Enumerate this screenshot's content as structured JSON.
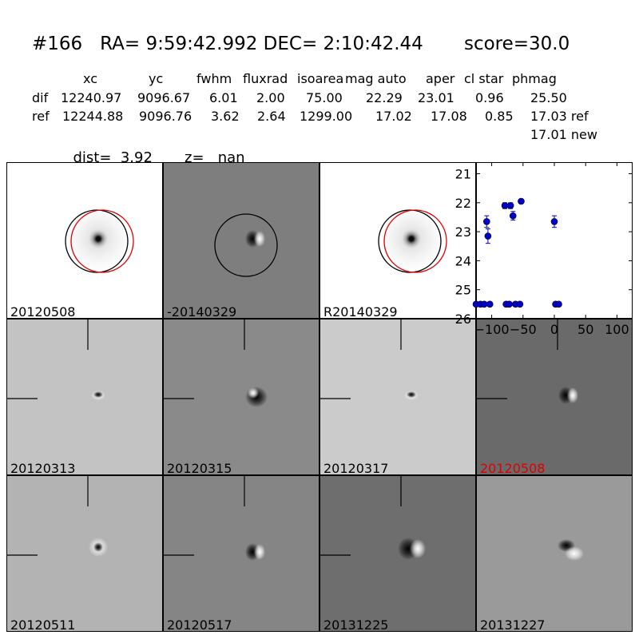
{
  "header": {
    "title": "#166   RA= 9:59:42.992 DEC= 2:10:42.44       score=30.0",
    "columns": [
      "xc",
      "yc",
      "fwhm",
      "fluxrad",
      "isoarea",
      "mag auto",
      "aper",
      "cl star",
      "phmag"
    ],
    "rows": [
      {
        "label": "dif",
        "values": [
          "12240.97",
          "9096.67",
          "6.01",
          "2.00",
          "75.00",
          "22.29",
          "23.01",
          "0.96",
          "25.50"
        ]
      },
      {
        "label": "ref",
        "values": [
          "12244.88",
          "9096.76",
          "3.62",
          "2.64",
          "1299.00",
          "17.02",
          "17.08",
          "0.85",
          "17.03 ref"
        ]
      }
    ],
    "extra_phmag": "17.01 new",
    "dist_label": "dist=",
    "dist_value": "3.92",
    "z_label": "z=",
    "z_value": "nan"
  },
  "panels": [
    {
      "label": "20120508",
      "bg": "#ffffff",
      "type": "positive_blob",
      "circles": true,
      "highlight": false
    },
    {
      "label": "-20140329",
      "bg": "#7e7e7e",
      "type": "dipole_lr",
      "circles": "black_only",
      "highlight": false
    },
    {
      "label": "R20140329",
      "bg": "#ffffff",
      "type": "positive_blob",
      "circles": true,
      "highlight": false
    },
    {
      "label": "20120313",
      "bg": "#c3c3c3",
      "type": "dipole_small",
      "crosshair": true,
      "highlight": false
    },
    {
      "label": "20120315",
      "bg": "#8a8a8a",
      "type": "dipole_dark",
      "crosshair": true,
      "highlight": false
    },
    {
      "label": "20120317",
      "bg": "#cbcbcb",
      "type": "dipole_small",
      "crosshair": true,
      "highlight": false
    },
    {
      "label": "20120508",
      "bg": "#6a6a6a",
      "type": "dipole_lr",
      "crosshair": true,
      "highlight": true
    },
    {
      "label": "20120511",
      "bg": "#b3b3b3",
      "type": "ring",
      "crosshair": true,
      "highlight": false
    },
    {
      "label": "20120517",
      "bg": "#858585",
      "type": "dipole_lr",
      "crosshair": true,
      "highlight": false
    },
    {
      "label": "20131225",
      "bg": "#6e6e6e",
      "type": "dipole_lr_big",
      "crosshair": true,
      "highlight": false
    },
    {
      "label": "20131227",
      "bg": "#9a9a9a",
      "type": "dipole_diag",
      "crosshair": false,
      "highlight": false
    }
  ],
  "colors": {
    "highlight": "#e00000",
    "circle_black": "#000000",
    "circle_red": "#e00000",
    "points": "#0000cc"
  },
  "chart_data": {
    "type": "scatter",
    "xlim": [
      -125,
      125
    ],
    "ylim": [
      26,
      20.6
    ],
    "xticks": [
      -100,
      -50,
      0,
      50,
      100
    ],
    "xtick_labels": [
      "−100",
      "−50",
      "0",
      "50",
      "100"
    ],
    "yticks": [
      21,
      22,
      23,
      24,
      25,
      26
    ],
    "ytick_labels": [
      "21",
      "22",
      "23",
      "24",
      "25",
      "26"
    ],
    "points": [
      {
        "x": -125,
        "y": 25.5,
        "err": 0
      },
      {
        "x": -118,
        "y": 25.5,
        "err": 0
      },
      {
        "x": -112,
        "y": 25.5,
        "err": 0
      },
      {
        "x": -108,
        "y": 22.65,
        "err": 0.2
      },
      {
        "x": -106,
        "y": 23.15,
        "err": 0.25
      },
      {
        "x": -103,
        "y": 25.5,
        "err": 0
      },
      {
        "x": -79,
        "y": 22.1,
        "err": 0.1
      },
      {
        "x": -77,
        "y": 25.5,
        "err": 0
      },
      {
        "x": -72,
        "y": 25.5,
        "err": 0
      },
      {
        "x": -70,
        "y": 22.1,
        "err": 0.1
      },
      {
        "x": -66,
        "y": 22.45,
        "err": 0.15
      },
      {
        "x": -62,
        "y": 25.5,
        "err": 0
      },
      {
        "x": -55,
        "y": 25.5,
        "err": 0
      },
      {
        "x": -53,
        "y": 21.95,
        "err": 0.05
      },
      {
        "x": 0,
        "y": 22.65,
        "err": 0.2
      },
      {
        "x": 2,
        "y": 25.5,
        "err": 0
      },
      {
        "x": 7,
        "y": 25.5,
        "err": 0
      }
    ]
  }
}
